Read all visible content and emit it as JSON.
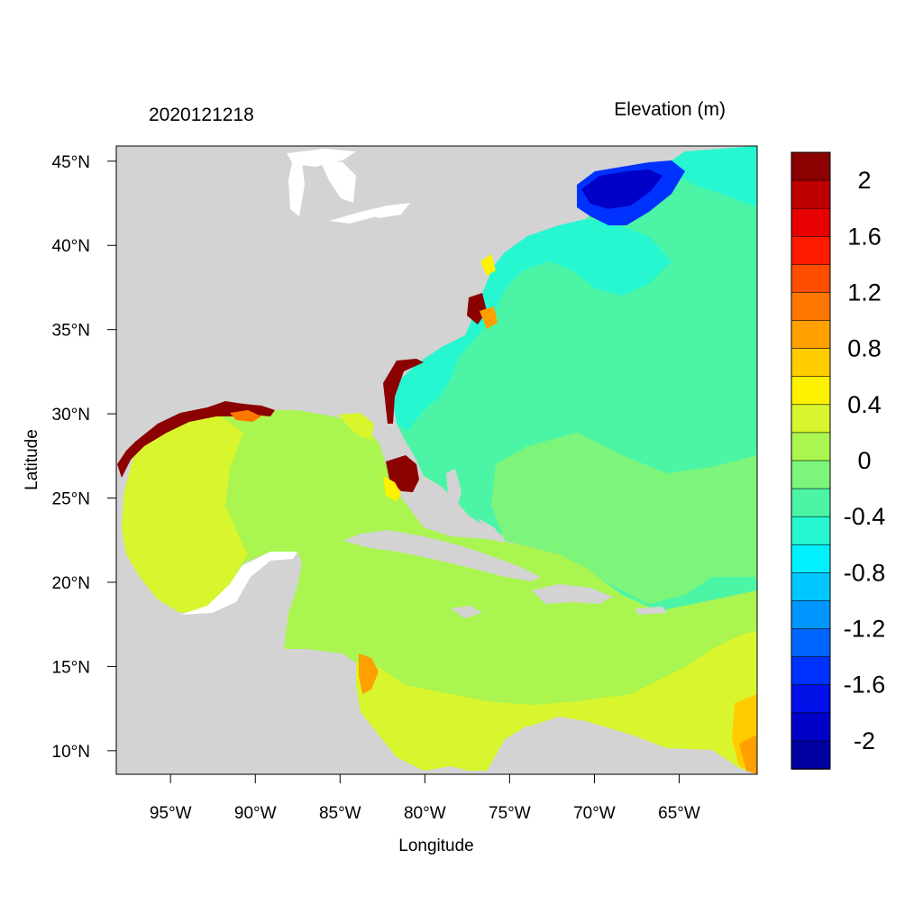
{
  "header": {
    "timestamp": "2020121218",
    "variable_title": "Elevation (m)"
  },
  "axes": {
    "xlabel": "Longitude",
    "ylabel": "Latitude",
    "xlim": [
      -98.2,
      -60.4
    ],
    "ylim": [
      8.6,
      45.9
    ],
    "xticks": [
      {
        "value": -95,
        "label": "95°W"
      },
      {
        "value": -90,
        "label": "90°W"
      },
      {
        "value": -85,
        "label": "85°W"
      },
      {
        "value": -80,
        "label": "80°W"
      },
      {
        "value": -75,
        "label": "75°W"
      },
      {
        "value": -70,
        "label": "70°W"
      },
      {
        "value": -65,
        "label": "65°W"
      }
    ],
    "yticks": [
      {
        "value": 10,
        "label": "10°N"
      },
      {
        "value": 15,
        "label": "15°N"
      },
      {
        "value": 20,
        "label": "20°N"
      },
      {
        "value": 25,
        "label": "25°N"
      },
      {
        "value": 30,
        "label": "30°N"
      },
      {
        "value": 35,
        "label": "35°N"
      },
      {
        "value": 40,
        "label": "40°N"
      },
      {
        "value": 45,
        "label": "45°N"
      }
    ]
  },
  "colorbar": {
    "colors_top_to_bottom": [
      "#8b0000",
      "#bf0000",
      "#e60000",
      "#ff1a00",
      "#ff4d00",
      "#ff7700",
      "#ff9f00",
      "#ffcc00",
      "#fff200",
      "#d8f52e",
      "#aaf54f",
      "#7cf57a",
      "#4cf5a6",
      "#26f7d0",
      "#00f0ff",
      "#00c8ff",
      "#0096ff",
      "#0064ff",
      "#0032ff",
      "#0010e6",
      "#0000c8",
      "#0000a0"
    ],
    "tick_labels": [
      "2",
      "1.6",
      "1.2",
      "0.8",
      "0.4",
      "0",
      "-0.4",
      "-0.8",
      "-1.2",
      "-1.6",
      "-2"
    ]
  },
  "map_colors": {
    "land": "#d3d3d3",
    "lakes": "#ffffff",
    "background": "#ffffff"
  }
}
